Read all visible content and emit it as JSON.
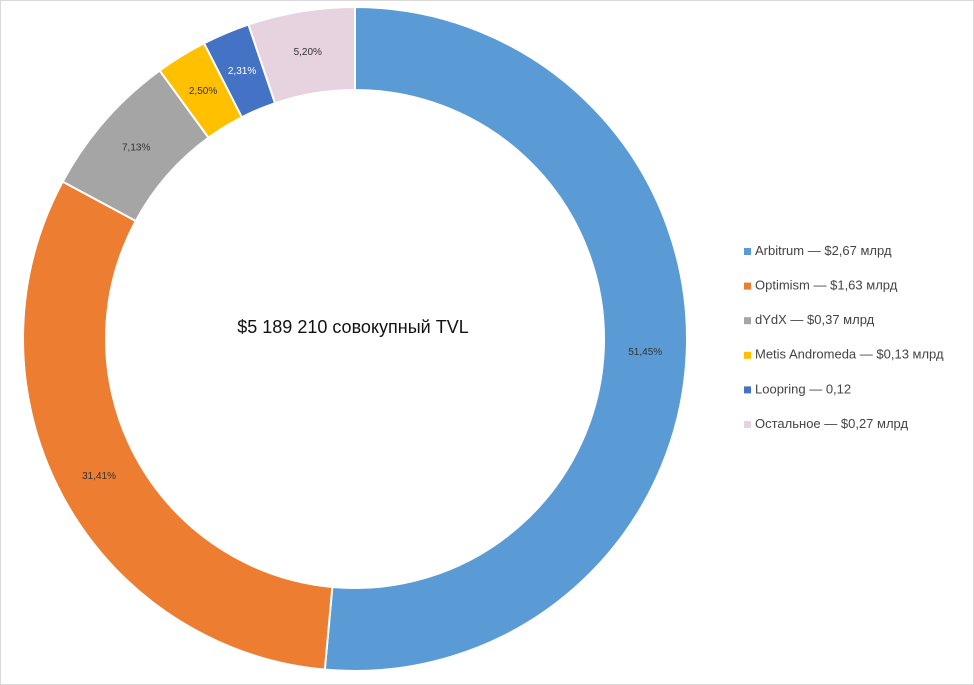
{
  "chart_data": {
    "type": "pie",
    "title": "$5 189 210 совокупный TVL",
    "categories": [
      "Arbitrum — $2,67 млрд",
      "Optimism — $1,63 млрд",
      "dYdX — $0,37 млрд",
      "Metis Andromeda — $0,13 млрд",
      "Loopring — 0,12",
      "Остальное — $0,27 млрд"
    ],
    "values": [
      51.45,
      31.41,
      7.13,
      2.5,
      2.31,
      5.2
    ],
    "value_labels": [
      "51,45%",
      "31,41%",
      "7,13%",
      "2,50%",
      "2,31%",
      "5,20%"
    ],
    "colors": [
      "#5b9bd5",
      "#ed7d31",
      "#a5a5a5",
      "#ffc000",
      "#4472c4",
      "#e6d3df"
    ],
    "legend": "right"
  }
}
